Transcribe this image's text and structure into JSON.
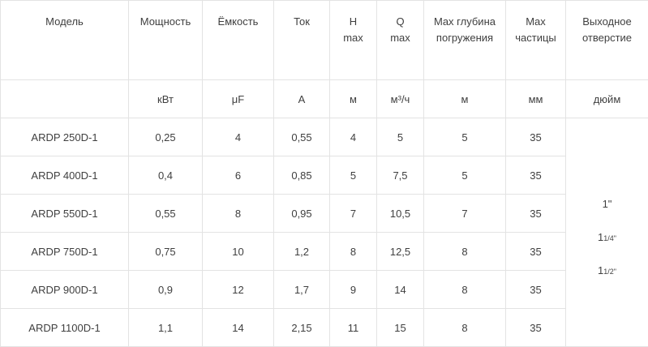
{
  "header": {
    "model": "Модель",
    "power": "Мощность",
    "capacity": "Ёмкость",
    "current": "Ток",
    "h_top": "H",
    "h_bottom": "max",
    "q_top": "Q",
    "q_bottom": "max",
    "depth_top": "Max глубина",
    "depth_bottom": "погружения",
    "particles_top": "Max",
    "particles_bottom": "частицы",
    "outlet_top": "Выходное",
    "outlet_bottom": "отверстие"
  },
  "units": {
    "model": "",
    "power": "кВт",
    "capacity": "μF",
    "current": "A",
    "h": "м",
    "q": "м³/ч",
    "depth": "м",
    "particles": "мм",
    "outlet": "дюйм"
  },
  "rows": [
    {
      "model": "ARDP 250D-1",
      "power": "0,25",
      "capacity": "4",
      "current": "0,55",
      "h": "4",
      "q": "5",
      "depth": "5",
      "particles": "35"
    },
    {
      "model": "ARDP 400D-1",
      "power": "0,4",
      "capacity": "6",
      "current": "0,85",
      "h": "5",
      "q": "7,5",
      "depth": "5",
      "particles": "35"
    },
    {
      "model": "ARDP 550D-1",
      "power": "0,55",
      "capacity": "8",
      "current": "0,95",
      "h": "7",
      "q": "10,5",
      "depth": "7",
      "particles": "35"
    },
    {
      "model": "ARDP 750D-1",
      "power": "0,75",
      "capacity": "10",
      "current": "1,2",
      "h": "8",
      "q": "12,5",
      "depth": "8",
      "particles": "35"
    },
    {
      "model": "ARDP 900D-1",
      "power": "0,9",
      "capacity": "12",
      "current": "1,7",
      "h": "9",
      "q": "14",
      "depth": "8",
      "particles": "35"
    },
    {
      "model": "ARDP 1100D-1",
      "power": "1,1",
      "capacity": "14",
      "current": "2,15",
      "h": "11",
      "q": "15",
      "depth": "8",
      "particles": "35"
    }
  ],
  "outlet_sizes": [
    {
      "whole": "1\"",
      "fraction": ""
    },
    {
      "whole": "1",
      "fraction": "1/4\""
    },
    {
      "whole": "1",
      "fraction": "1/2\""
    }
  ]
}
